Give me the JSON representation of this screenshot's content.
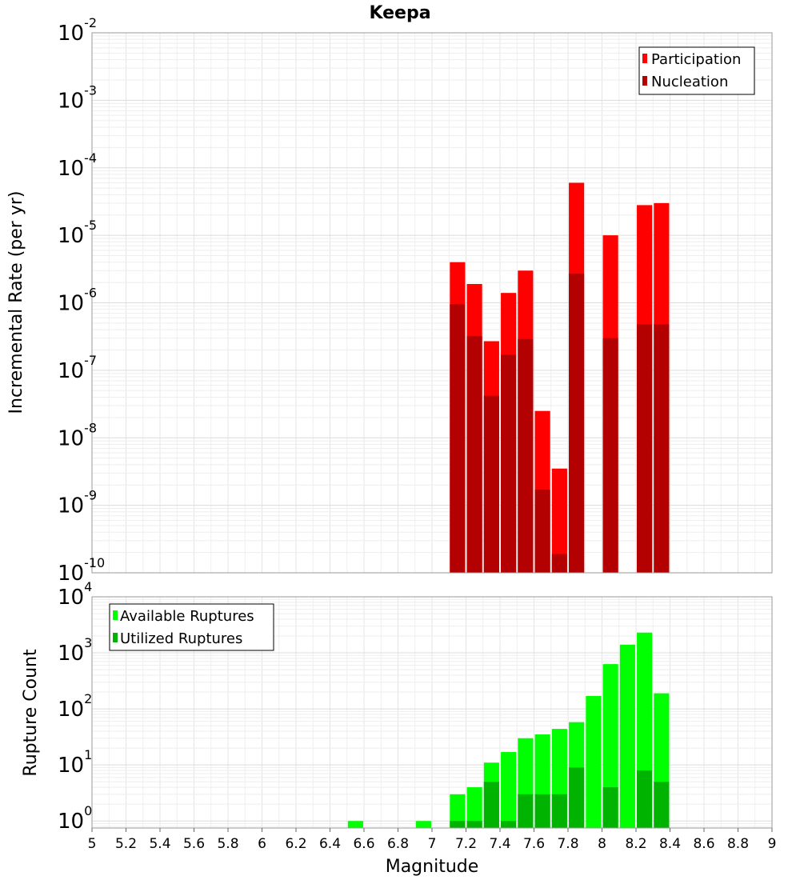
{
  "chart_data": [
    {
      "type": "bar",
      "title": "Keepa",
      "ylabel": "Incremental Rate (per yr)",
      "xlabel": "",
      "y_scale": "log",
      "ylim": [
        1e-10,
        0.01
      ],
      "xlim": [
        5,
        9
      ],
      "grid": true,
      "legend_position": "top-right",
      "bar_width": 0.09,
      "x": [
        7.15,
        7.25,
        7.35,
        7.45,
        7.55,
        7.65,
        7.75,
        7.85,
        8.05,
        8.25,
        8.35
      ],
      "series": [
        {
          "name": "Participation",
          "color": "#ff0000",
          "values": [
            4e-06,
            1.9e-06,
            2.7e-07,
            1.4e-06,
            3e-06,
            2.5e-08,
            3.5e-09,
            6e-05,
            1e-05,
            2.8e-05,
            3e-05
          ]
        },
        {
          "name": "Nucleation",
          "color": "#b30000",
          "values": [
            9.5e-07,
            3.2e-07,
            4.2e-08,
            1.7e-07,
            2.9e-07,
            1.7e-09,
            1.9e-10,
            2.7e-06,
            3e-07,
            4.8e-07,
            4.8e-07
          ]
        }
      ]
    },
    {
      "type": "bar",
      "title": "",
      "ylabel": "Rupture Count",
      "xlabel": "Magnitude",
      "y_scale": "log",
      "ylim": [
        0.75,
        10000
      ],
      "xlim": [
        5,
        9
      ],
      "grid": true,
      "legend_position": "top-left",
      "bar_width": 0.09,
      "x": [
        6.55,
        6.95,
        7.15,
        7.25,
        7.35,
        7.45,
        7.55,
        7.65,
        7.75,
        7.85,
        7.95,
        8.05,
        8.15,
        8.25,
        8.35
      ],
      "series": [
        {
          "name": "Available Ruptures",
          "color": "#00ff00",
          "values": [
            1,
            1,
            3,
            4,
            11,
            17,
            30,
            35,
            44,
            58,
            170,
            630,
            1400,
            2300,
            190
          ]
        },
        {
          "name": "Utilized Ruptures",
          "color": "#00b300",
          "values": [
            0,
            0,
            1,
            1,
            5,
            1,
            3,
            3,
            3,
            9,
            0,
            4,
            0,
            8,
            5
          ]
        }
      ]
    }
  ],
  "x_ticks": [
    "5",
    "5.2",
    "5.4",
    "5.6",
    "5.8",
    "6",
    "6.2",
    "6.4",
    "6.6",
    "6.8",
    "7",
    "7.2",
    "7.4",
    "7.6",
    "7.8",
    "8",
    "8.2",
    "8.4",
    "8.6",
    "8.8",
    "9"
  ],
  "top_y_exponents": [
    "-2",
    "-3",
    "-4",
    "-5",
    "-6",
    "-7",
    "-8",
    "-9",
    "-10"
  ],
  "bottom_y_exponents": [
    "4",
    "3",
    "2",
    "1",
    "0"
  ],
  "y_tick_base": "10"
}
